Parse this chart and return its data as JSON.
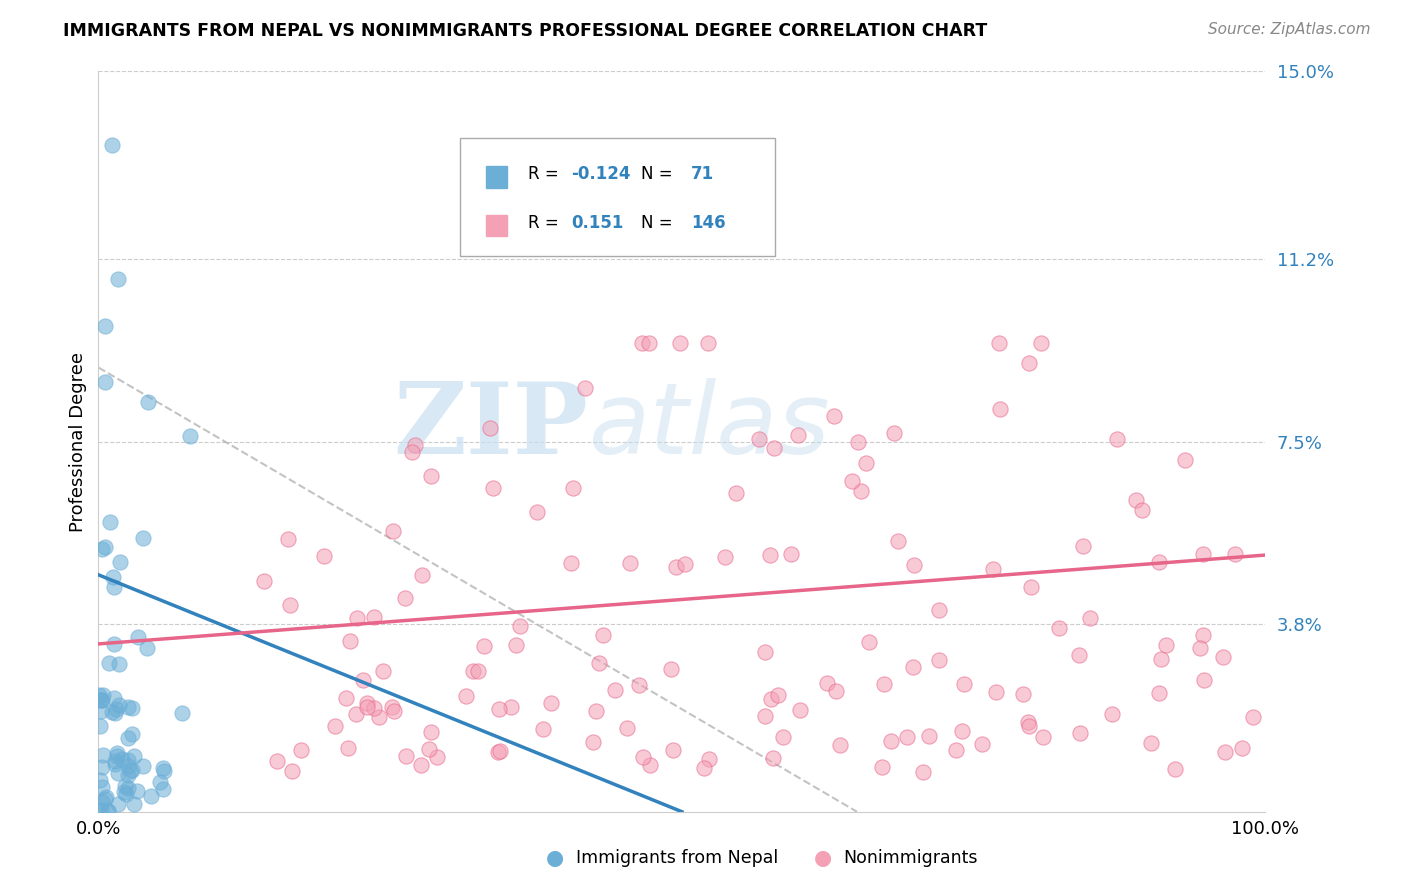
{
  "title": "IMMIGRANTS FROM NEPAL VS NONIMMIGRANTS PROFESSIONAL DEGREE CORRELATION CHART",
  "source": "Source: ZipAtlas.com",
  "ylabel": "Professional Degree",
  "xlim": [
    0,
    1
  ],
  "ylim": [
    0,
    0.15
  ],
  "yticks": [
    0.0,
    0.038,
    0.075,
    0.112,
    0.15
  ],
  "ytick_labels": [
    "",
    "3.8%",
    "7.5%",
    "11.2%",
    "15.0%"
  ],
  "xtick_labels": [
    "0.0%",
    "100.0%"
  ],
  "color_blue": "#6baed6",
  "color_pink": "#f4a0b5",
  "color_blue_dark": "#3182bd",
  "color_pink_dark": "#e8658a",
  "color_number": "#3182bd",
  "watermark_zip": "ZIP",
  "watermark_atlas": "atlas",
  "seed": 12,
  "n_blue": 71,
  "n_pink": 146,
  "blue_line_x": [
    0.0,
    0.5
  ],
  "blue_line_y": [
    0.048,
    0.0
  ],
  "pink_line_x": [
    0.0,
    1.0
  ],
  "pink_line_y": [
    0.034,
    0.052
  ],
  "dashed_line_x": [
    0.0,
    0.65
  ],
  "dashed_line_y": [
    0.09,
    0.0
  ]
}
